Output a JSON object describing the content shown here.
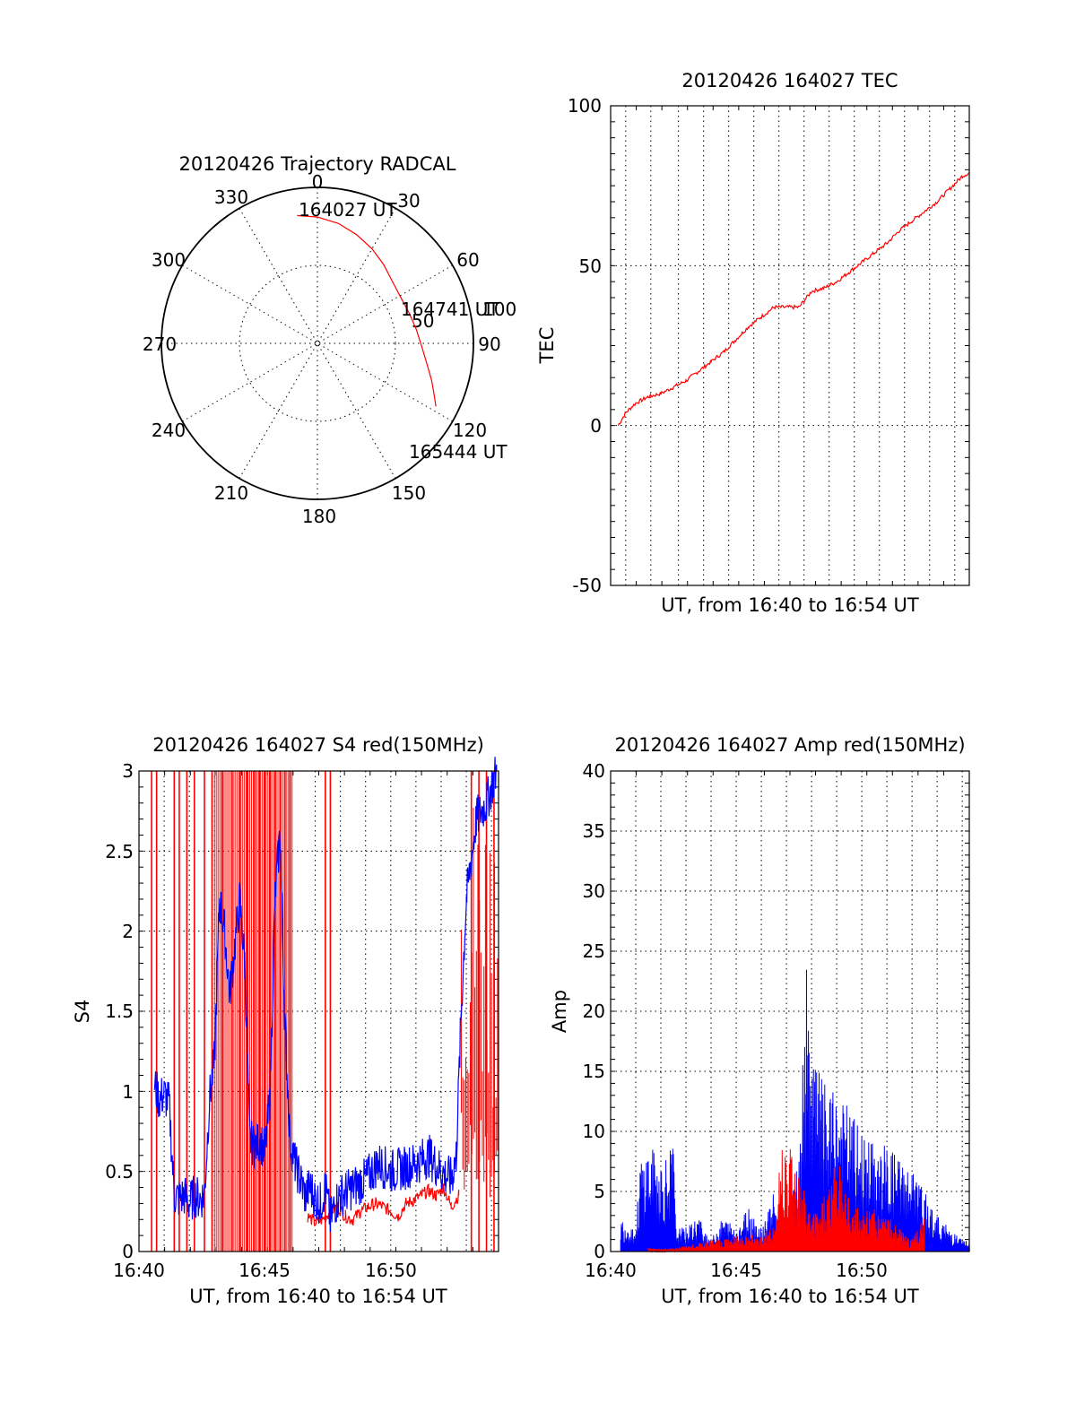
{
  "chart_data": [
    {
      "type": "polar",
      "title": "20120426 Trajectory RADCAL",
      "angle_labels": [
        "0",
        "30",
        "60",
        "90",
        "120",
        "150",
        "180",
        "210",
        "240",
        "270",
        "300",
        "330"
      ],
      "radius_label": "50",
      "radius_range": [
        0,
        100
      ],
      "direction": "clockwise from top (0 = north)",
      "grid": true,
      "series": [
        {
          "color": "#ff0000",
          "points": [
            {
              "azimuth": -9,
              "zenith": 83
            },
            {
              "azimuth": 0,
              "zenith": 81
            },
            {
              "azimuth": 10,
              "zenith": 78
            },
            {
              "azimuth": 20,
              "zenith": 74
            },
            {
              "azimuth": 30,
              "zenith": 70
            },
            {
              "azimuth": 40,
              "zenith": 66
            },
            {
              "azimuth": 52,
              "zenith": 62
            },
            {
              "azimuth": 62,
              "zenith": 61
            },
            {
              "azimuth": 72,
              "zenith": 62
            },
            {
              "azimuth": 82,
              "zenith": 64
            },
            {
              "azimuth": 92,
              "zenith": 67
            },
            {
              "azimuth": 100,
              "zenith": 71
            },
            {
              "azimuth": 108,
              "zenith": 77
            },
            {
              "azimuth": 114,
              "zenith": 82
            },
            {
              "azimuth": 118,
              "zenith": 86
            }
          ]
        }
      ],
      "annotations": [
        {
          "text": "164027 UT",
          "azimuth": -9,
          "zenith": 83
        },
        {
          "text": "164741 UT",
          "azimuth": 72,
          "zenith": 62
        },
        {
          "text": "165444 UT",
          "azimuth": 118,
          "zenith": 86
        }
      ],
      "overlap_label": "100"
    },
    {
      "type": "line",
      "title": "20120426 164027 TEC",
      "xlabel": "UT, from 16:40 to 16:54 UT",
      "ylabel": "TEC",
      "xlim": [
        0,
        14.28
      ],
      "ylim": [
        -50,
        100
      ],
      "yticks": [
        "-50",
        "0",
        "50",
        "100"
      ],
      "x_gridlines": [
        0.6,
        1.6,
        2.7,
        3.7,
        4.7,
        5.7,
        6.7,
        7.7,
        8.7,
        9.7,
        10.7,
        11.7,
        12.7,
        13.7
      ],
      "grid": true,
      "series": [
        {
          "color": "#ff0000",
          "x": [
            0.3,
            0.6,
            1.0,
            1.5,
            2.0,
            2.5,
            3.0,
            3.5,
            4.0,
            4.5,
            5.0,
            5.5,
            6.0,
            6.5,
            7.0,
            7.5,
            8.0,
            8.5,
            9.0,
            9.5,
            10.0,
            10.5,
            11.0,
            11.5,
            12.0,
            12.5,
            13.0,
            13.5,
            14.0,
            14.28
          ],
          "y": [
            0,
            4,
            7,
            9,
            10,
            12,
            14,
            17,
            20,
            23,
            27,
            31,
            34,
            37,
            37,
            37,
            42,
            43,
            45,
            48,
            51,
            54,
            57,
            61,
            64,
            67,
            70,
            74,
            78,
            79
          ]
        }
      ]
    },
    {
      "type": "line",
      "title": "20120426 164027 S4 red(150MHz)",
      "xlabel": "UT, from 16:40 to 16:54 UT",
      "ylabel": "S4",
      "xlim": [
        0,
        14.28
      ],
      "ylim": [
        0,
        3
      ],
      "yticks": [
        "0",
        "0.5",
        "1",
        "1.5",
        "2",
        "2.5",
        "3"
      ],
      "xticks": [
        {
          "x": 0,
          "label": "16:40"
        },
        {
          "x": 5,
          "label": "16:45"
        },
        {
          "x": 10,
          "label": "16:50"
        }
      ],
      "grid": true,
      "series": [
        {
          "color": "#0000ff",
          "x": [
            0.6,
            0.8,
            1.0,
            1.2,
            1.4,
            1.6,
            1.8,
            2.0,
            2.2,
            2.4,
            2.6,
            2.8,
            3.0,
            3.2,
            3.4,
            3.6,
            3.8,
            4.0,
            4.2,
            4.4,
            4.6,
            4.8,
            5.0,
            5.2,
            5.4,
            5.6,
            5.8,
            6.0,
            6.2,
            6.4,
            6.6,
            6.8,
            7.0,
            7.2,
            7.4,
            7.6,
            7.8,
            8.0,
            8.5,
            9.0,
            9.5,
            10.0,
            10.5,
            11.0,
            11.5,
            12.0,
            12.4,
            12.6,
            12.8,
            13.0,
            13.4,
            13.8,
            14.2
          ],
          "y": [
            1.05,
            0.95,
            0.98,
            0.92,
            0.35,
            0.33,
            0.35,
            0.3,
            0.35,
            0.33,
            0.35,
            0.95,
            1.2,
            2.2,
            2.0,
            1.6,
            1.9,
            2.2,
            1.8,
            0.7,
            0.65,
            0.7,
            0.62,
            0.95,
            2.2,
            2.6,
            1.4,
            0.7,
            0.55,
            0.45,
            0.35,
            0.4,
            0.33,
            0.3,
            0.4,
            0.2,
            0.3,
            0.35,
            0.4,
            0.45,
            0.55,
            0.5,
            0.52,
            0.55,
            0.6,
            0.5,
            0.45,
            0.6,
            1.5,
            2.2,
            2.7,
            2.8,
            3.0
          ]
        },
        {
          "color": "#ff0000",
          "x": [
            6.7,
            7.0,
            7.3,
            7.6,
            7.9,
            8.2,
            8.5,
            8.8,
            9.1,
            9.4,
            9.7,
            10.0,
            10.3,
            10.6,
            10.9,
            11.2,
            11.5,
            11.8,
            12.1,
            12.4,
            12.7
          ],
          "y": [
            0.22,
            0.18,
            0.2,
            0.25,
            0.28,
            0.22,
            0.2,
            0.25,
            0.28,
            0.3,
            0.28,
            0.25,
            0.22,
            0.3,
            0.32,
            0.35,
            0.38,
            0.35,
            0.4,
            0.28,
            0.35
          ]
        }
      ]
    },
    {
      "type": "area",
      "title": "20120426 164027 Amp red(150MHz)",
      "xlabel": "UT, from 16:40 to 16:54 UT",
      "ylabel": "Amp",
      "xlim": [
        0,
        14.28
      ],
      "ylim": [
        0,
        40
      ],
      "yticks": [
        "0",
        "5",
        "10",
        "15",
        "20",
        "25",
        "30",
        "35",
        "40"
      ],
      "xticks": [
        {
          "x": 0,
          "label": "16:40"
        },
        {
          "x": 5,
          "label": "16:45"
        },
        {
          "x": 10,
          "label": "16:50"
        }
      ],
      "grid": true,
      "series": [
        {
          "color": "#0000ff",
          "x": [
            0.4,
            1.0,
            1.2,
            1.5,
            2.0,
            2.5,
            2.6,
            3.0,
            3.5,
            4.0,
            4.5,
            5.0,
            5.5,
            6.0,
            6.5,
            7.0,
            7.5,
            7.8,
            8.0,
            8.2,
            8.5,
            8.8,
            9.0,
            9.5,
            10.0,
            10.5,
            11.0,
            11.5,
            12.0,
            12.5,
            13.0,
            13.5,
            14.0,
            14.28
          ],
          "y": [
            3,
            2,
            8,
            9,
            8,
            9,
            2,
            2,
            3,
            1,
            3,
            2,
            4,
            2,
            5,
            2,
            8,
            24,
            18,
            16,
            14,
            13,
            14,
            12,
            10,
            9,
            9,
            8,
            7,
            5,
            3,
            2,
            1,
            1
          ]
        },
        {
          "color": "#ff0000",
          "x": [
            1.5,
            2.5,
            6.5,
            6.8,
            7.0,
            7.3,
            7.6,
            8.0,
            8.5,
            9.0,
            9.5,
            10.0,
            10.5,
            11.0,
            11.5,
            12.0,
            12.5
          ],
          "y": [
            0.3,
            0.3,
            2,
            10,
            11,
            9,
            6,
            3,
            5,
            8,
            5,
            3,
            4,
            3,
            2,
            1,
            3
          ]
        }
      ]
    }
  ]
}
